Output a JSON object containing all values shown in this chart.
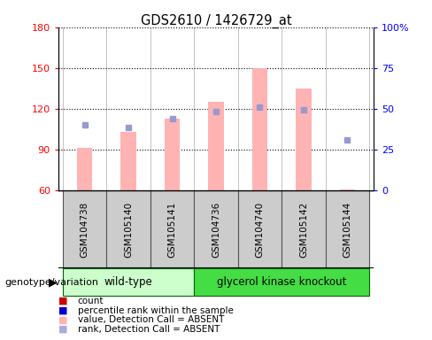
{
  "title": "GDS2610 / 1426729_at",
  "samples": [
    "GSM104738",
    "GSM105140",
    "GSM105141",
    "GSM104736",
    "GSM104740",
    "GSM105142",
    "GSM105144"
  ],
  "pink_bars": [
    91,
    103,
    113,
    125,
    150,
    135,
    61
  ],
  "blue_squares": [
    108,
    106,
    113,
    118,
    121,
    119,
    97
  ],
  "bar_base": 60,
  "ylim_left": [
    60,
    180
  ],
  "ylim_right": [
    0,
    100
  ],
  "yticks_left": [
    60,
    90,
    120,
    150,
    180
  ],
  "ytick_labels_left": [
    "60",
    "90",
    "120",
    "150",
    "180"
  ],
  "yticks_right": [
    0,
    25,
    50,
    75,
    100
  ],
  "ytick_labels_right": [
    "0",
    "25",
    "50",
    "75",
    "100%"
  ],
  "group1_label": "wild-type",
  "group2_label": "glycerol kinase knockout",
  "group1_count": 3,
  "group2_count": 4,
  "group_label": "genotype/variation",
  "pink_color": "#ffb3b3",
  "blue_color": "#9999cc",
  "group1_bg": "#ccffcc",
  "group2_bg": "#44dd44",
  "sample_bg": "#cccccc",
  "legend_colors": [
    "#cc0000",
    "#0000cc",
    "#ffb3b3",
    "#aaaadd"
  ],
  "legend_labels": [
    "count",
    "percentile rank within the sample",
    "value, Detection Call = ABSENT",
    "rank, Detection Call = ABSENT"
  ],
  "bar_width": 0.35
}
